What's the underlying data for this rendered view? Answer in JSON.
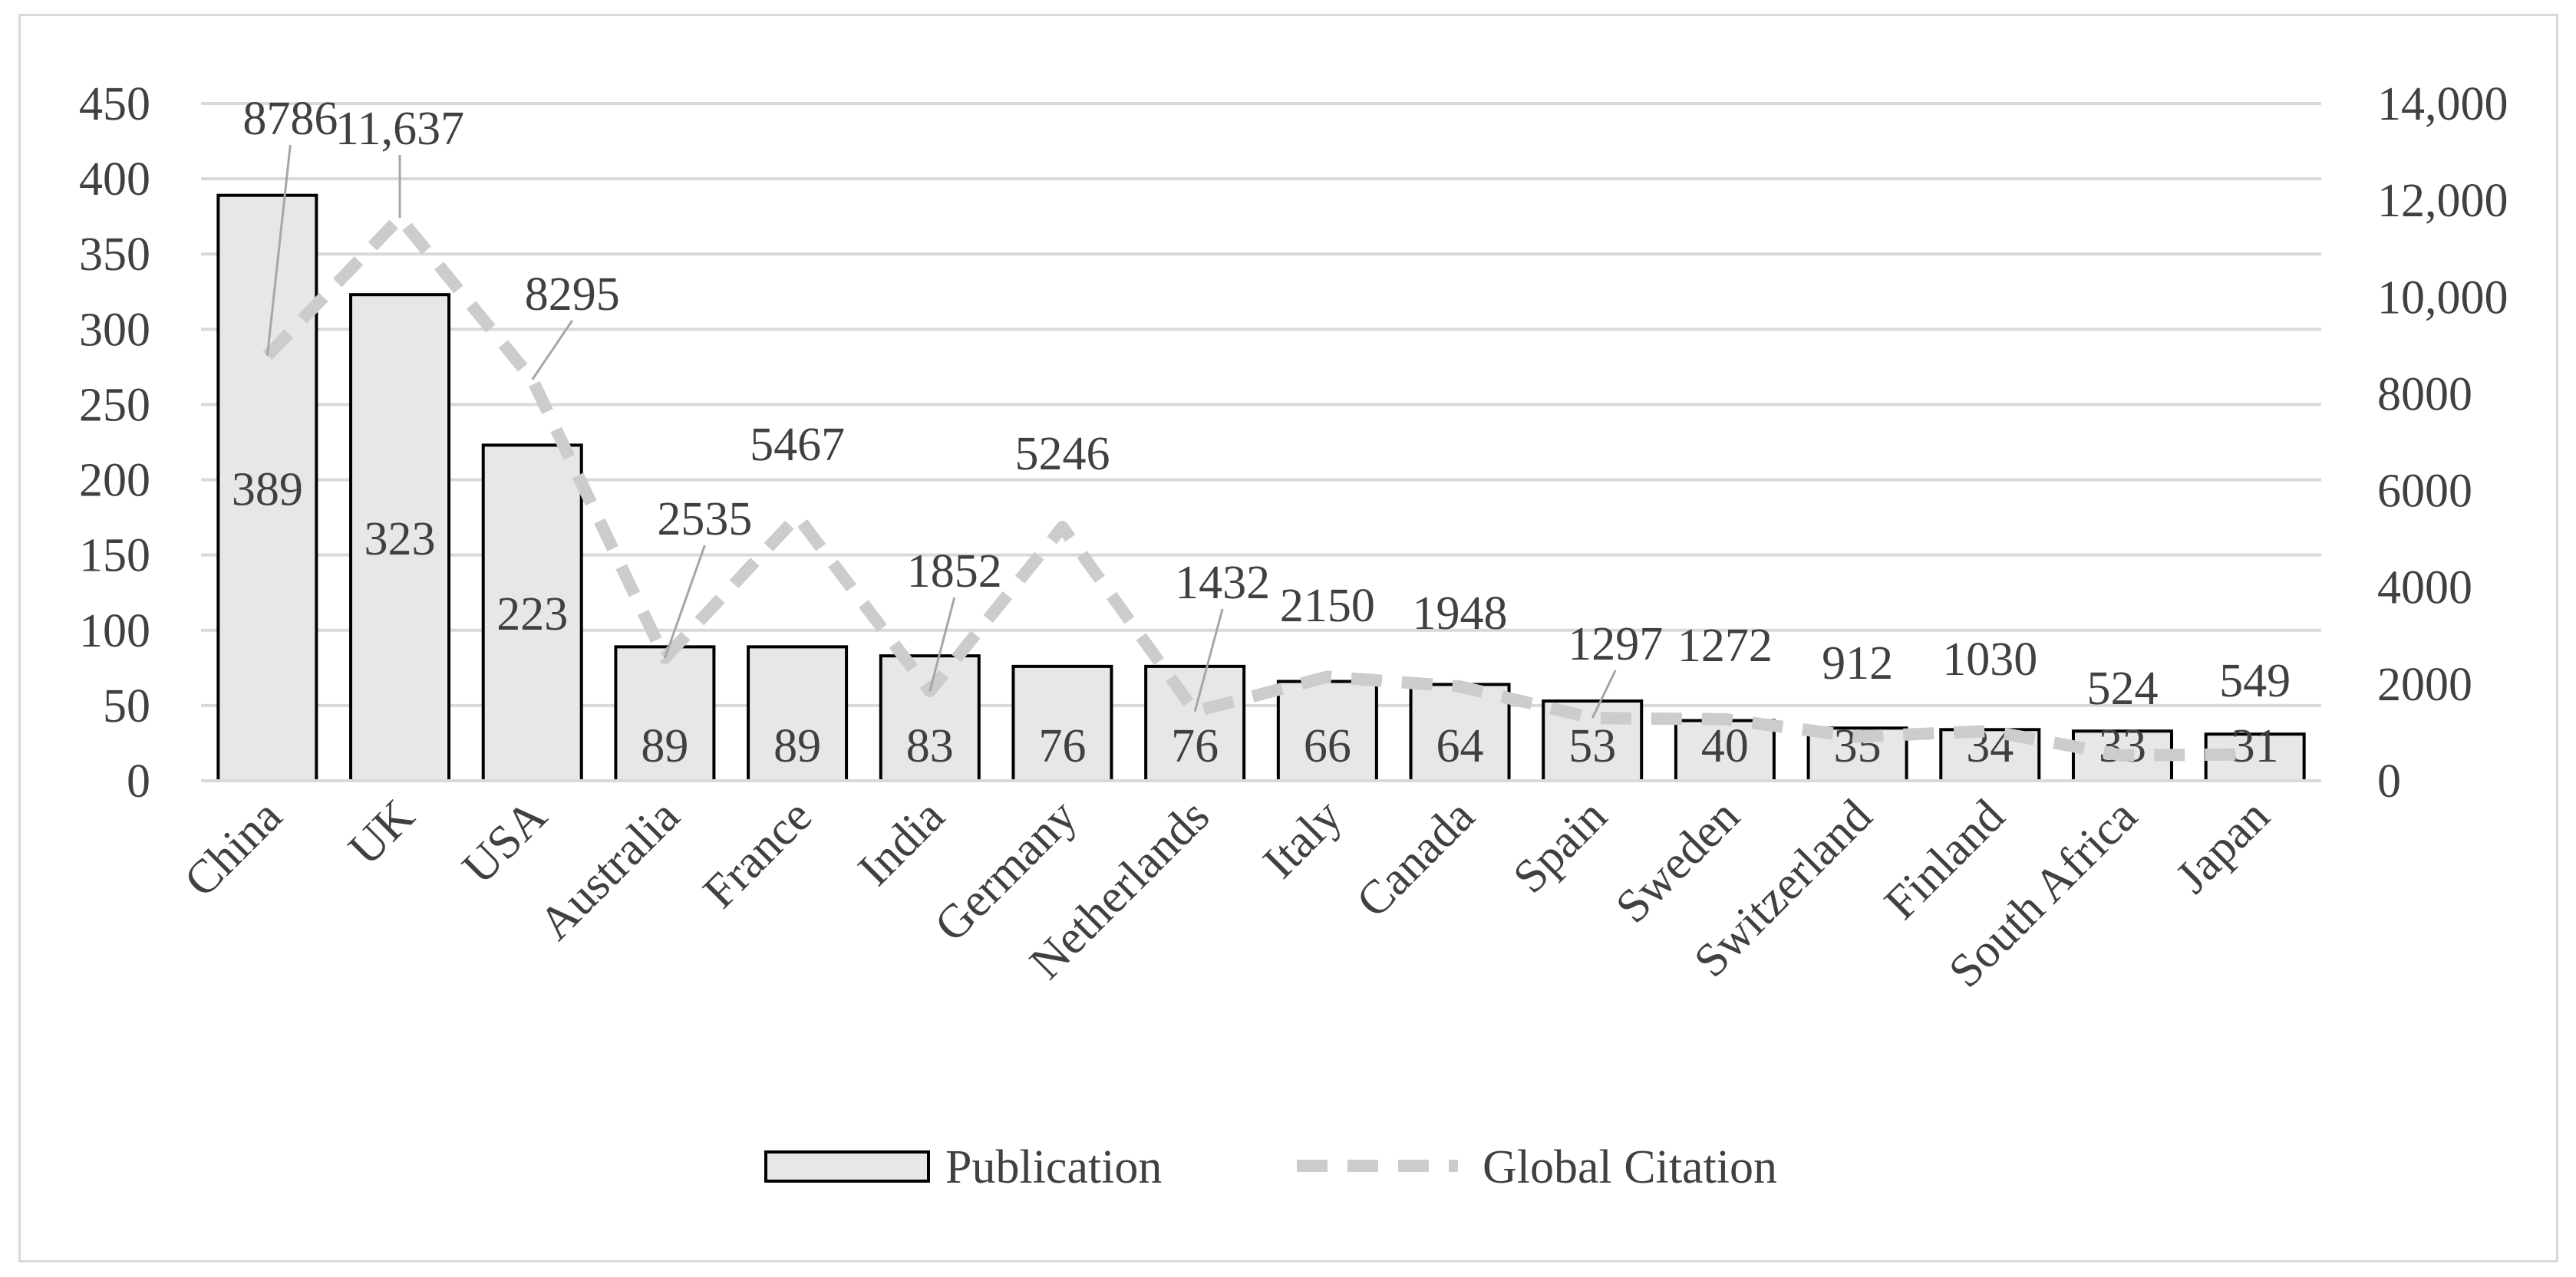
{
  "chart_data": {
    "type": "bar",
    "categories": [
      "China",
      "UK",
      "USA",
      "Australia",
      "France",
      "India",
      "Germany",
      "Netherlands",
      "Italy",
      "Canada",
      "Spain",
      "Sweden",
      "Switzerland",
      "Finland",
      "South Africa",
      "Japan"
    ],
    "series": [
      {
        "name": "Publication",
        "type": "bar",
        "axis": "left",
        "values": [
          389,
          323,
          223,
          89,
          89,
          83,
          76,
          76,
          66,
          64,
          53,
          40,
          35,
          34,
          33,
          31
        ],
        "data_labels": [
          "389",
          "323",
          "223",
          "89",
          "89",
          "83",
          "76",
          "76",
          "66",
          "64",
          "53",
          "40",
          "35",
          "34",
          "33",
          "31"
        ]
      },
      {
        "name": "Global Citation",
        "type": "line",
        "style": "dashed",
        "axis": "right",
        "values": [
          8786,
          11637,
          8295,
          2535,
          5467,
          1852,
          5246,
          1432,
          2150,
          1948,
          1297,
          1272,
          912,
          1030,
          524,
          549
        ],
        "data_labels": [
          "8786",
          "11,637",
          "8295",
          "2535",
          "5467",
          "1852",
          "5246",
          "1432",
          "2150",
          "1948",
          "1297",
          "1272",
          "912",
          "1030",
          "524",
          "549"
        ]
      }
    ],
    "y_left": {
      "range": [
        0,
        450
      ],
      "ticks": [
        "0",
        "50",
        "100",
        "150",
        "200",
        "250",
        "300",
        "350",
        "400",
        "450"
      ]
    },
    "y_right": {
      "range": [
        0,
        14000
      ],
      "ticks": [
        "0",
        "2000",
        "4000",
        "6000",
        "8000",
        "10,000",
        "12,000",
        "14,000"
      ]
    },
    "grid": true,
    "legend": {
      "position": "bottom",
      "entries": [
        "Publication",
        "Global Citation"
      ]
    },
    "colors": {
      "bar_fill": "#e7e7e7",
      "bar_stroke": "#000000",
      "line": "#cccccc",
      "grid": "#d9d9d9",
      "text": "#404040"
    }
  }
}
